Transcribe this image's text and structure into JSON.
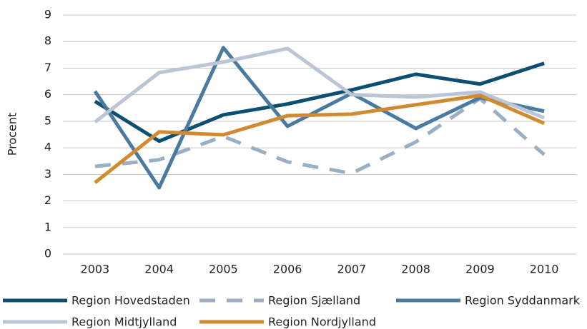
{
  "chart_data": {
    "type": "line",
    "y_label": "Procent",
    "categories": [
      "2003",
      "2004",
      "2005",
      "2006",
      "2007",
      "2008",
      "2009",
      "2010"
    ],
    "ylim": [
      0,
      9
    ],
    "yticks": [
      0,
      1,
      2,
      3,
      4,
      5,
      6,
      7,
      8,
      9
    ],
    "grid": true,
    "legend": "bottom",
    "series": [
      {
        "name": "Region Hovedstaden",
        "color": "#0d4f72",
        "dashed": false,
        "values": [
          5.75,
          4.25,
          5.24,
          5.65,
          6.18,
          6.77,
          6.4,
          7.18
        ]
      },
      {
        "name": "Region Sjælland",
        "color": "#9aafc4",
        "dashed": true,
        "values": [
          3.3,
          3.55,
          4.43,
          3.47,
          3.04,
          4.22,
          5.86,
          3.74
        ]
      },
      {
        "name": "Region Syddanmark",
        "color": "#4a7aa0",
        "dashed": false,
        "values": [
          6.13,
          2.5,
          7.77,
          4.81,
          6.05,
          4.73,
          5.89,
          5.38
        ]
      },
      {
        "name": "Region Midtjylland",
        "color": "#bcc5d6",
        "dashed": false,
        "values": [
          4.97,
          6.83,
          7.23,
          7.74,
          6.0,
          5.91,
          6.1,
          5.13
        ]
      },
      {
        "name": "Region Nordjylland",
        "color": "#d08a30",
        "dashed": false,
        "values": [
          2.69,
          4.6,
          4.49,
          5.21,
          5.27,
          5.62,
          5.97,
          4.92
        ]
      }
    ]
  }
}
